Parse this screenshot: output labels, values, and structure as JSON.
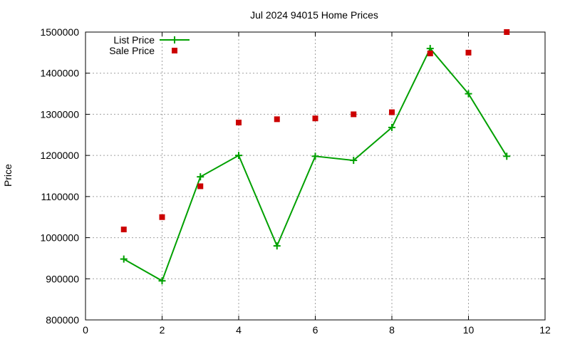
{
  "chart_data": {
    "type": "line",
    "title": "Jul 2024 94015 Home Prices",
    "xlabel": "",
    "ylabel": "Price",
    "xlim": [
      0,
      12
    ],
    "ylim": [
      800000,
      1500000
    ],
    "xticks": [
      0,
      2,
      4,
      6,
      8,
      10,
      12
    ],
    "yticks": [
      800000,
      900000,
      1000000,
      1100000,
      1200000,
      1300000,
      1400000,
      1500000
    ],
    "grid": true,
    "legend_position": "top-left",
    "series": [
      {
        "name": "List Price",
        "style": "line-plus",
        "color": "#00a000",
        "x": [
          1,
          2,
          3,
          4,
          5,
          6,
          7,
          8,
          9,
          10,
          11
        ],
        "y": [
          948000,
          895000,
          1148000,
          1200000,
          980000,
          1198000,
          1188000,
          1268000,
          1460000,
          1350000,
          1198000
        ]
      },
      {
        "name": "Sale Price",
        "style": "square-marker",
        "color": "#cc0000",
        "x": [
          1,
          2,
          3,
          4,
          5,
          6,
          7,
          8,
          9,
          10,
          11
        ],
        "y": [
          1020000,
          1050000,
          1125000,
          1280000,
          1288000,
          1290000,
          1300000,
          1305000,
          1448000,
          1450000,
          1500000
        ]
      }
    ]
  }
}
